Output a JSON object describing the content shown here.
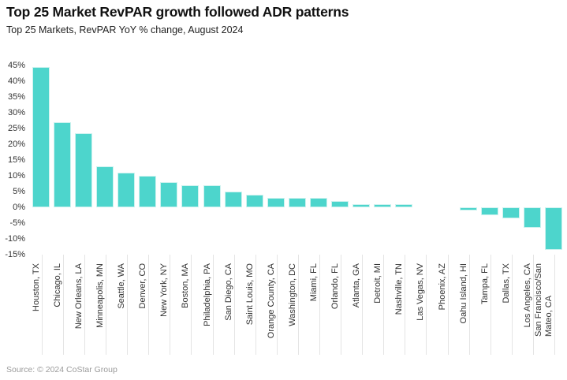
{
  "header": {
    "title": "Top 25 Market RevPAR growth followed ADR patterns",
    "subtitle": "Top 25 Markets, RevPAR YoY % change, August 2024"
  },
  "footer": {
    "source": "Source: © 2024 CoStar Group"
  },
  "chart_data": {
    "type": "bar",
    "title": "Top 25 Market RevPAR growth followed ADR patterns",
    "subtitle": "Top 25 Markets, RevPAR YoY % change, August 2024",
    "unit": "%",
    "categories": [
      "Houston, TX",
      "Chicago, IL",
      "New Orleans, LA",
      "Minneapolis, MN",
      "Seattle, WA",
      "Denver, CO",
      "New York, NY",
      "Boston, MA",
      "Philadelphia, PA",
      "San Diego, CA",
      "Saint Louis, MO",
      "Orange County, CA",
      "Washington, DC",
      "Miami, FL",
      "Orlando, FL",
      "Atlanta, GA",
      "Detroit, MI",
      "Nashville, TN",
      "Las Vegas, NV",
      "Phoenix, AZ",
      "Oahu Island, HI",
      "Tampa, FL",
      "Dallas, TX",
      "Los Angeles, CA",
      "San Francisco/San\nMateo, CA"
    ],
    "values": [
      44.5,
      27,
      23.5,
      13,
      11,
      10,
      8,
      7,
      7,
      5,
      4,
      3,
      3,
      3,
      2,
      1,
      1,
      1,
      0,
      0,
      -1,
      -2.5,
      -3.5,
      -6.5,
      -13.5
    ],
    "yticks": [
      45,
      40,
      35,
      30,
      25,
      20,
      15,
      10,
      5,
      0,
      -5,
      -10,
      -15
    ],
    "ytick_suffix": "%",
    "ylim": [
      -15,
      47
    ],
    "xlabel": "",
    "ylabel": "",
    "legend": "none",
    "grid": "vertical ticks below baseline only",
    "bar_color": "#4DD5CC",
    "bar_border_color": "#cdf2ef",
    "text_color": "#333333",
    "gridline_color": "#e4e4e4"
  }
}
